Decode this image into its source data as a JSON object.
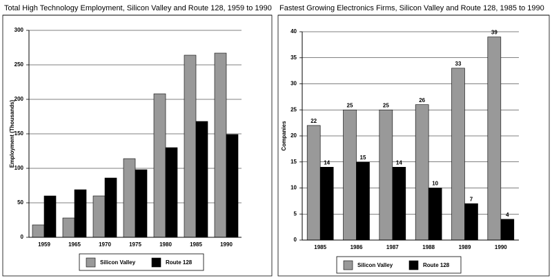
{
  "chart_data": [
    {
      "type": "bar",
      "title": "Total High Technology Employment, Silicon Valley and Route 128, 1959 to 1990",
      "y_label": "Employment (Thousands)",
      "categories": [
        "1959",
        "1965",
        "1970",
        "1975",
        "1980",
        "1985",
        "1990"
      ],
      "series": [
        {
          "name": "Silicon Valley",
          "color": "#999999",
          "values": [
            18,
            28,
            60,
            114,
            208,
            264,
            267
          ]
        },
        {
          "name": "Route 128",
          "color": "#000000",
          "values": [
            60,
            69,
            86,
            98,
            130,
            168,
            149
          ]
        }
      ],
      "ylim": [
        0,
        300
      ],
      "yticks": [
        0,
        50,
        100,
        150,
        200,
        250,
        300
      ],
      "grid": true,
      "show_values": false
    },
    {
      "type": "bar",
      "title": "Fastest Growing Electronics Firms, Silicon Valley and  Route 128, 1985 to 1990",
      "y_label": "Companies",
      "categories": [
        "1985",
        "1986",
        "1987",
        "1988",
        "1989",
        "1990"
      ],
      "series": [
        {
          "name": "Silicon Valley",
          "color": "#999999",
          "values": [
            22,
            25,
            25,
            26,
            33,
            39
          ]
        },
        {
          "name": "Route 128",
          "color": "#000000",
          "values": [
            14,
            15,
            14,
            10,
            7,
            4
          ]
        }
      ],
      "ylim": [
        0,
        40
      ],
      "yticks": [
        0,
        5,
        10,
        15,
        20,
        25,
        30,
        35,
        40
      ],
      "grid": true,
      "show_values": true
    }
  ]
}
